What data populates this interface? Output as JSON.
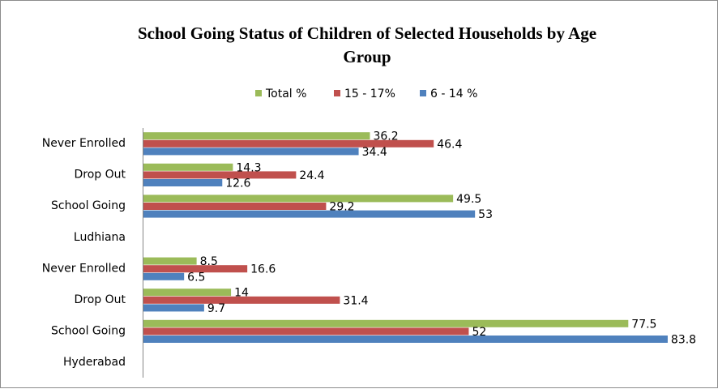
{
  "chart_data": {
    "type": "bar",
    "orientation": "horizontal",
    "title": "School Going Status of Children of Selected Households by Age Group",
    "title_lines": [
      "School Going Status of Children of Selected Households by Age",
      "Group"
    ],
    "legend_position": "top",
    "grid": false,
    "xlim": [
      0,
      90
    ],
    "categories": [
      "Never Enrolled",
      "Drop Out",
      "School Going",
      "Ludhiana",
      "Never Enrolled",
      "Drop Out",
      "School Going",
      "Hyderabad"
    ],
    "series": [
      {
        "name": "Total %",
        "color": "#9bbb59",
        "values": [
          36.2,
          14.3,
          49.5,
          null,
          8.5,
          14,
          77.5,
          null
        ]
      },
      {
        "name": "15 - 17%",
        "color": "#c0504d",
        "values": [
          46.4,
          24.4,
          29.2,
          null,
          16.6,
          31.4,
          52,
          null
        ]
      },
      {
        "name": "6 - 14 %",
        "color": "#4f81bd",
        "values": [
          34.4,
          12.6,
          53,
          null,
          6.5,
          9.7,
          83.8,
          null
        ]
      }
    ],
    "data_labels": [
      [
        "36.2",
        "14.3",
        "49.5",
        null,
        "8.5",
        "14",
        "77.5",
        null
      ],
      [
        "46.4",
        "24.4",
        "29.2",
        null,
        "16.6",
        "31.4",
        "52",
        null
      ],
      [
        "34.4",
        "12.6",
        "53",
        null,
        "6.5",
        "9.7",
        "83.8",
        null
      ]
    ]
  }
}
